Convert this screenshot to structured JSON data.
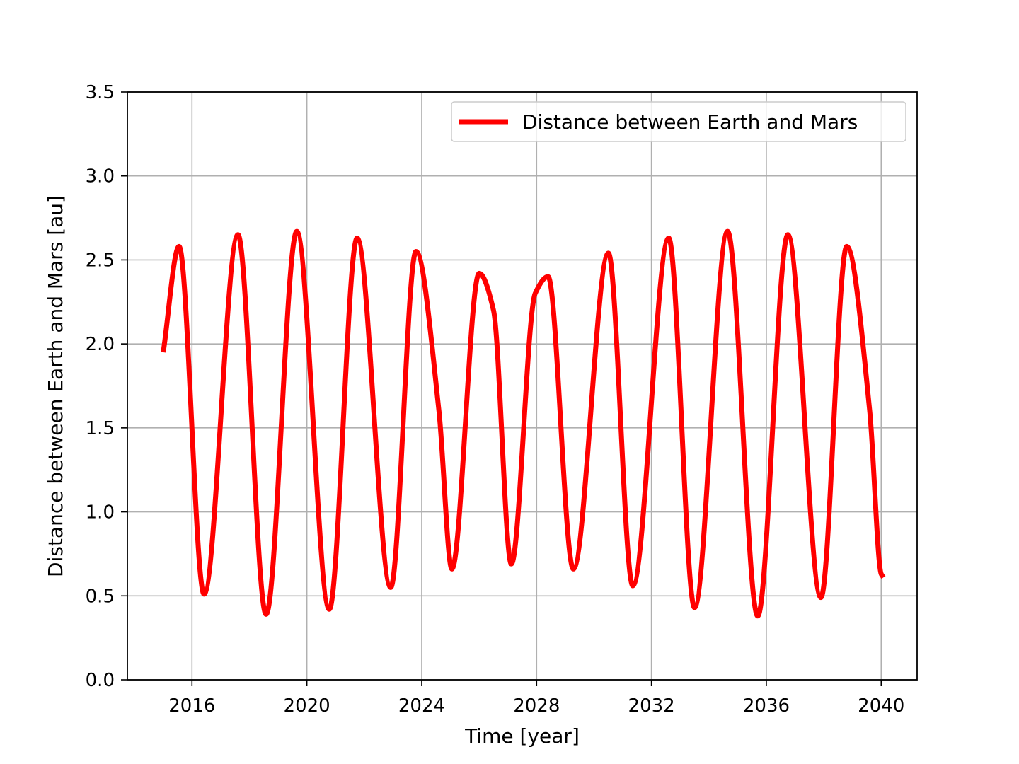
{
  "chart_data": {
    "type": "line",
    "title": "",
    "xlabel": "Time [year]",
    "ylabel": "Distance between Earth and Mars [au]",
    "xlim": [
      2013.75,
      2041.25
    ],
    "ylim": [
      0,
      3.5
    ],
    "x_ticks": [
      2016,
      2020,
      2024,
      2028,
      2032,
      2036,
      2040
    ],
    "x_tick_labels": [
      "2016",
      "2020",
      "2024",
      "2028",
      "2032",
      "2036",
      "2040"
    ],
    "y_ticks": [
      0.0,
      0.5,
      1.0,
      1.5,
      2.0,
      2.5,
      3.0,
      3.5
    ],
    "y_tick_labels": [
      "0.0",
      "0.5",
      "1.0",
      "1.5",
      "2.0",
      "2.5",
      "3.0",
      "3.5"
    ],
    "grid": true,
    "legend_position": "top-right",
    "series": [
      {
        "name": "Distance between Earth and Mars",
        "color": "#ff0000",
        "points": [
          [
            2015.0,
            1.95
          ],
          [
            2015.55,
            2.58
          ],
          [
            2016.42,
            0.51
          ],
          [
            2017.6,
            2.65
          ],
          [
            2018.58,
            0.39
          ],
          [
            2019.65,
            2.67
          ],
          [
            2020.78,
            0.42
          ],
          [
            2021.75,
            2.63
          ],
          [
            2022.92,
            0.55
          ],
          [
            2023.8,
            2.55
          ],
          [
            2024.6,
            1.6
          ],
          [
            2025.05,
            0.66
          ],
          [
            2026.0,
            2.42
          ],
          [
            2026.5,
            2.2
          ],
          [
            2027.12,
            0.69
          ],
          [
            2027.95,
            2.3
          ],
          [
            2028.4,
            2.4
          ],
          [
            2029.28,
            0.66
          ],
          [
            2030.5,
            2.54
          ],
          [
            2031.35,
            0.56
          ],
          [
            2032.6,
            2.63
          ],
          [
            2033.5,
            0.43
          ],
          [
            2034.65,
            2.67
          ],
          [
            2035.7,
            0.38
          ],
          [
            2036.75,
            2.65
          ],
          [
            2037.9,
            0.49
          ],
          [
            2038.8,
            2.58
          ],
          [
            2039.6,
            1.6
          ],
          [
            2040.0,
            0.63
          ],
          [
            2040.08,
            0.61
          ]
        ]
      }
    ]
  }
}
